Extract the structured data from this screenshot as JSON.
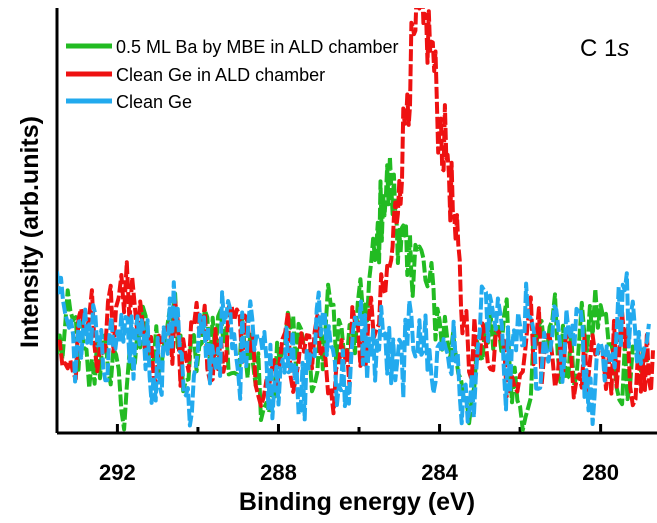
{
  "chart_data": {
    "type": "line",
    "title": "",
    "panel_label": {
      "main": "C 1",
      "italic": "s"
    },
    "xlabel": "Binding energy (eV)",
    "ylabel": "Intensity (arb.units)",
    "x_reversed": true,
    "xlim": [
      293.5,
      278.6
    ],
    "ylim": [
      -1.8,
      9.5
    ],
    "y_tick_labels": false,
    "x_ticks": [
      292,
      288,
      284,
      280
    ],
    "x_tick_labels": [
      "292",
      "288",
      "284",
      "280"
    ],
    "x_minor_ticks": [
      290,
      286,
      282
    ],
    "grid": false,
    "legend_position": "top-left",
    "series": [
      {
        "name": "0.5 ML Ba by MBE in ALD chamber",
        "color": "#22bb22",
        "peak_center": 285.2,
        "x": [
          293.5,
          293.1,
          292.7,
          292.3,
          291.9,
          291.5,
          291.1,
          290.7,
          290.3,
          289.9,
          289.5,
          289.1,
          288.7,
          288.3,
          287.9,
          287.5,
          287.1,
          286.7,
          286.3,
          285.9,
          285.6,
          285.4,
          285.2,
          285.0,
          284.8,
          284.6,
          284.3,
          284.0,
          283.6,
          283.2,
          282.8,
          282.4,
          282.0,
          281.6,
          281.2,
          280.8,
          280.4,
          280.0,
          279.6,
          279.2,
          278.8
        ],
        "y": [
          0.3,
          1.2,
          -0.6,
          0.8,
          -1.2,
          0.9,
          0.1,
          1.5,
          -0.4,
          0.6,
          1.3,
          -0.2,
          0.9,
          -1.0,
          0.4,
          1.1,
          -0.5,
          1.6,
          0.2,
          1.4,
          2.8,
          4.5,
          4.8,
          3.6,
          2.4,
          3.2,
          2.1,
          1.2,
          0.3,
          -0.9,
          0.6,
          1.3,
          -1.1,
          0.5,
          1.2,
          -0.3,
          0.8,
          1.6,
          -0.6,
          0.5,
          -0.2
        ]
      },
      {
        "name": "Clean Ge in ALD chamber",
        "color": "#ee1111",
        "peak_center": 284.3,
        "x": [
          293.5,
          293.1,
          292.7,
          292.3,
          291.9,
          291.5,
          291.1,
          290.7,
          290.3,
          289.9,
          289.5,
          289.1,
          288.7,
          288.3,
          287.9,
          287.5,
          287.1,
          286.7,
          286.3,
          285.9,
          285.5,
          285.2,
          285.0,
          284.8,
          284.6,
          284.4,
          284.2,
          284.0,
          283.8,
          283.6,
          283.4,
          283.0,
          282.6,
          282.2,
          281.8,
          281.4,
          281.0,
          280.6,
          280.2,
          279.8,
          279.4,
          279.0,
          278.7
        ],
        "y": [
          0.6,
          -0.2,
          1.3,
          0.4,
          2.4,
          0.8,
          -0.3,
          1.1,
          0.2,
          0.9,
          -0.1,
          1.2,
          0.3,
          -0.4,
          0.7,
          0.1,
          0.9,
          -0.6,
          0.4,
          0.6,
          1.1,
          2.8,
          4.9,
          7.2,
          8.9,
          9.1,
          8.6,
          6.3,
          5.6,
          3.3,
          1.1,
          0.2,
          0.9,
          -0.3,
          1.2,
          0.3,
          0.6,
          -0.4,
          0.8,
          0.2,
          0.5,
          -0.7,
          0.4
        ]
      },
      {
        "name": "Clean Ge",
        "color": "#22aaee",
        "x": [
          293.5,
          293.2,
          292.9,
          292.6,
          292.3,
          292.0,
          291.7,
          291.4,
          291.1,
          290.8,
          290.5,
          290.2,
          289.9,
          289.6,
          289.3,
          289.0,
          288.7,
          288.4,
          288.1,
          287.8,
          287.5,
          287.2,
          286.9,
          286.6,
          286.3,
          286.0,
          285.7,
          285.4,
          285.1,
          284.8,
          284.5,
          284.2,
          283.9,
          283.6,
          283.3,
          283.0,
          282.7,
          282.4,
          282.1,
          281.8,
          281.5,
          281.2,
          280.9,
          280.6,
          280.3,
          280.0,
          279.7,
          279.4,
          279.1,
          278.8
        ],
        "y": [
          2.5,
          1.0,
          0.2,
          1.6,
          -0.4,
          0.9,
          0.1,
          1.2,
          -0.3,
          0.6,
          1.5,
          -1.6,
          0.8,
          0.2,
          1.3,
          -0.2,
          1.7,
          0.4,
          -0.5,
          1.0,
          -1.3,
          0.3,
          1.4,
          0.1,
          -0.6,
          1.1,
          0.2,
          0.8,
          -0.4,
          0.5,
          1.2,
          -0.3,
          0.7,
          0.1,
          -1.5,
          0.9,
          1.6,
          -0.2,
          0.4,
          1.3,
          -0.6,
          0.8,
          0.2,
          1.5,
          -1.2,
          0.6,
          0.3,
          2.0,
          0.1,
          1.1
        ]
      }
    ]
  }
}
